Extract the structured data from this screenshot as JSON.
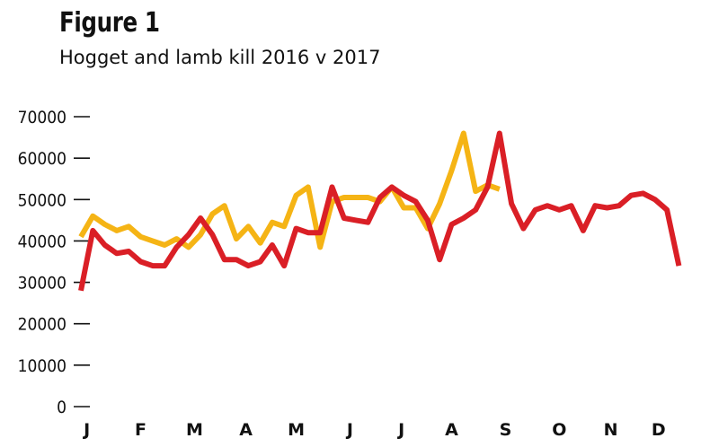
{
  "header": {
    "figure_label": "Figure 1",
    "subtitle": "Hogget and lamb kill 2016 v 2017"
  },
  "chart_data": {
    "type": "line",
    "title": "Figure 1",
    "subtitle": "Hogget and lamb kill 2016 v 2017",
    "xlabel": "",
    "ylabel": "",
    "ylim": [
      0,
      70000
    ],
    "yticks": [
      0,
      10000,
      20000,
      30000,
      40000,
      50000,
      60000,
      70000
    ],
    "xlim": [
      0,
      52
    ],
    "month_labels": [
      "J",
      "F",
      "M",
      "A",
      "M",
      "J",
      "J",
      "A",
      "S",
      "O",
      "N",
      "D"
    ],
    "month_positions": [
      0.5,
      5,
      9.5,
      13.8,
      18,
      22.5,
      26.8,
      31,
      35.5,
      40,
      44.3,
      48.3
    ],
    "grid": false,
    "legend": "none",
    "series": [
      {
        "color": "#F5B415",
        "weeks": [
          0,
          1,
          2,
          3,
          4,
          5,
          6,
          7,
          8,
          9,
          10,
          11,
          12,
          13,
          14,
          15,
          16,
          17,
          18,
          19,
          20,
          21,
          22,
          23,
          24,
          25,
          26,
          27,
          28,
          29,
          30,
          31,
          32,
          33,
          34,
          35
        ],
        "values": [
          41000,
          46000,
          44000,
          42500,
          43500,
          41000,
          40000,
          39000,
          40500,
          38500,
          41500,
          46500,
          48500,
          40500,
          43500,
          39500,
          44500,
          43500,
          51000,
          53000,
          38500,
          49500,
          50500,
          50500,
          50500,
          49500,
          53000,
          48000,
          48000,
          43000,
          49000,
          57000,
          66000,
          52000,
          53500,
          52500
        ]
      },
      {
        "color": "#DA1F26",
        "weeks": [
          0,
          1,
          2,
          3,
          4,
          5,
          6,
          7,
          8,
          9,
          10,
          11,
          12,
          13,
          14,
          15,
          16,
          17,
          18,
          19,
          20,
          21,
          22,
          23,
          24,
          25,
          26,
          27,
          28,
          29,
          30,
          31,
          32,
          33,
          34,
          35,
          36,
          37,
          38,
          39,
          40,
          41,
          42,
          43,
          44,
          45,
          46,
          47,
          48,
          49,
          50
        ],
        "values": [
          28000,
          42500,
          39000,
          37000,
          37500,
          35000,
          34000,
          34000,
          38500,
          41500,
          45500,
          41500,
          35500,
          35500,
          34000,
          35000,
          39000,
          34000,
          43000,
          42000,
          42000,
          53000,
          45500,
          45000,
          44500,
          50500,
          53000,
          51000,
          49500,
          45000,
          35500,
          44000,
          45500,
          47500,
          53000,
          66000,
          49000,
          43000,
          47500,
          48500,
          47500,
          48500,
          42500,
          48500,
          48000,
          48500,
          51000,
          51500,
          50000,
          47500,
          34000
        ]
      }
    ]
  }
}
